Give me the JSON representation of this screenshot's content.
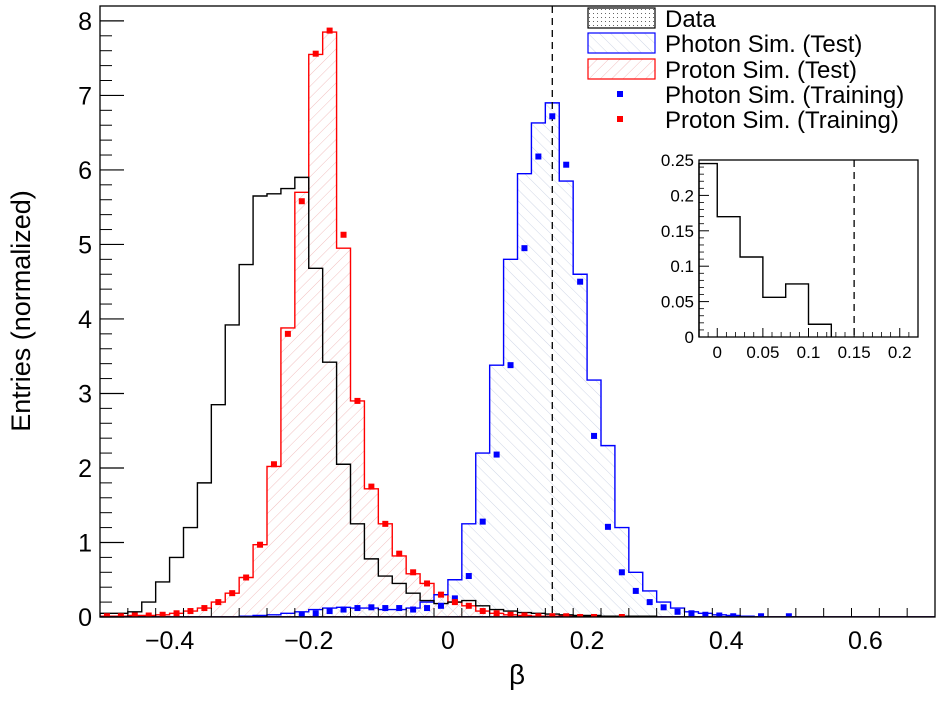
{
  "chart_data": [
    {
      "type": "histogram",
      "xlabel": "β",
      "ylabel": "Entries (normalized)",
      "xlim": [
        -0.5,
        0.7
      ],
      "ylim": [
        0,
        8.2
      ],
      "x_ticks": [
        -0.4,
        -0.2,
        0,
        0.2,
        0.4,
        0.6
      ],
      "x_tick_labels": [
        "−0.4",
        "−0.2",
        "0",
        "0.2",
        "0.4",
        "0.6"
      ],
      "y_ticks": [
        0,
        1,
        2,
        3,
        4,
        5,
        6,
        7,
        8
      ],
      "y_tick_labels": [
        "0",
        "1",
        "2",
        "3",
        "4",
        "5",
        "6",
        "7",
        "8"
      ],
      "cut_line_x": 0.15,
      "bin_edges_start": -0.5,
      "bin_width": 0.02,
      "series": [
        {
          "name": "Data",
          "style": "histogram-black",
          "color": "#000000",
          "values": [
            0.05,
            0.05,
            0.07,
            0.2,
            0.47,
            0.8,
            1.2,
            1.8,
            2.85,
            3.92,
            4.73,
            5.65,
            5.68,
            5.75,
            5.9,
            4.68,
            3.42,
            2.05,
            1.25,
            0.78,
            0.55,
            0.45,
            0.32,
            0.22,
            0.18,
            0.2,
            0.22,
            0.15,
            0.1,
            0.08,
            0.06,
            0.05,
            0.04,
            0.03,
            0.02,
            0.02,
            0.01,
            0.01,
            0.01,
            0.01,
            0.0,
            0.0,
            0.0,
            0.0,
            0.0,
            0.0,
            0.0,
            0.0,
            0.0,
            0.0,
            0.0,
            0.0,
            0.0,
            0.0,
            0.0,
            0.0,
            0.0,
            0.0,
            0.0,
            0.0
          ]
        },
        {
          "name": "Photon Sim. (Test)",
          "style": "histogram-blue-hatched",
          "color": "#0000ff",
          "values": [
            0,
            0,
            0,
            0,
            0,
            0,
            0,
            0,
            0,
            0,
            0.01,
            0.02,
            0.03,
            0.05,
            0.07,
            0.1,
            0.12,
            0.13,
            0.12,
            0.12,
            0.1,
            0.1,
            0.12,
            0.2,
            0.3,
            0.5,
            1.25,
            2.2,
            3.38,
            4.8,
            5.95,
            6.63,
            6.9,
            5.85,
            4.6,
            3.18,
            2.3,
            1.2,
            0.6,
            0.35,
            0.2,
            0.12,
            0.07,
            0.05,
            0.03,
            0.02,
            0.01,
            0.0,
            0.0,
            0.0,
            0.0,
            0.0,
            0.0,
            0.0,
            0.0,
            0.0,
            0.0,
            0.0,
            0.0,
            0.0
          ]
        },
        {
          "name": "Proton Sim. (Test)",
          "style": "histogram-red-hatched",
          "color": "#ff0000",
          "values": [
            0.01,
            0.01,
            0.02,
            0.02,
            0.03,
            0.05,
            0.08,
            0.12,
            0.2,
            0.32,
            0.53,
            0.97,
            2.02,
            3.88,
            5.7,
            7.55,
            7.85,
            4.95,
            2.9,
            1.72,
            1.25,
            0.82,
            0.58,
            0.45,
            0.3,
            0.2,
            0.15,
            0.08,
            0.05,
            0.03,
            0.02,
            0.01,
            0.01,
            0.01,
            0.0,
            0.0,
            0.0,
            0.0,
            0.0,
            0.0,
            0.0,
            0.0,
            0.0,
            0.0,
            0.0,
            0.0,
            0.0,
            0.0,
            0.0,
            0.0,
            0.0,
            0.0,
            0.0,
            0.0,
            0.0,
            0.0,
            0.0,
            0.0,
            0.0,
            0.0
          ]
        },
        {
          "name": "Photon Sim. (Training)",
          "style": "markers-blue",
          "color": "#0000ff",
          "x": [
            -0.21,
            -0.19,
            -0.17,
            -0.15,
            -0.13,
            -0.11,
            -0.09,
            -0.07,
            -0.05,
            -0.03,
            -0.01,
            0.01,
            0.03,
            0.05,
            0.07,
            0.09,
            0.11,
            0.13,
            0.15,
            0.17,
            0.19,
            0.21,
            0.23,
            0.25,
            0.27,
            0.29,
            0.31,
            0.33,
            0.35,
            0.37,
            0.39,
            0.41,
            0.45,
            0.49
          ],
          "y": [
            0.02,
            0.05,
            0.08,
            0.1,
            0.12,
            0.13,
            0.12,
            0.12,
            0.1,
            0.12,
            0.15,
            0.25,
            0.55,
            1.28,
            2.18,
            3.38,
            4.95,
            6.18,
            6.72,
            6.07,
            4.5,
            2.43,
            1.21,
            0.6,
            0.35,
            0.2,
            0.13,
            0.07,
            0.05,
            0.03,
            0.02,
            0.01,
            0.01,
            0.01
          ]
        },
        {
          "name": "Proton Sim. (Training)",
          "style": "markers-red",
          "color": "#ff0000",
          "x": [
            -0.49,
            -0.47,
            -0.45,
            -0.43,
            -0.41,
            -0.39,
            -0.37,
            -0.35,
            -0.33,
            -0.31,
            -0.29,
            -0.27,
            -0.25,
            -0.23,
            -0.21,
            -0.19,
            -0.17,
            -0.15,
            -0.13,
            -0.11,
            -0.09,
            -0.07,
            -0.05,
            -0.03,
            -0.01,
            0.01,
            0.03,
            0.05,
            0.07,
            0.09,
            0.11,
            0.13,
            0.15,
            0.17,
            0.19,
            0.21,
            0.25
          ],
          "y": [
            0.01,
            0.01,
            0.02,
            0.02,
            0.03,
            0.05,
            0.08,
            0.12,
            0.2,
            0.32,
            0.53,
            0.97,
            2.05,
            3.8,
            5.58,
            7.56,
            7.87,
            5.13,
            2.9,
            1.75,
            1.25,
            0.85,
            0.6,
            0.45,
            0.3,
            0.2,
            0.15,
            0.08,
            0.05,
            0.03,
            0.02,
            0.01,
            0.01,
            0.01,
            0.0,
            0.0,
            0.0
          ]
        }
      ],
      "legend": {
        "placement": "top-right",
        "entries": [
          {
            "label": "Data",
            "symbol": "box-dotted"
          },
          {
            "label": "Photon Sim. (Test)",
            "symbol": "box-blue-hatched"
          },
          {
            "label": "Proton Sim. (Test)",
            "symbol": "box-red-hatched"
          },
          {
            "label": "Photon Sim. (Training)",
            "symbol": "marker-blue"
          },
          {
            "label": "Proton Sim. (Training)",
            "symbol": "marker-red"
          }
        ]
      }
    },
    {
      "type": "histogram",
      "placement": "inset",
      "xlim": [
        -0.02,
        0.22
      ],
      "ylim": [
        0,
        0.25
      ],
      "x_ticks": [
        0,
        0.05,
        0.1,
        0.15,
        0.2
      ],
      "x_tick_labels": [
        "0",
        "0.05",
        "0.1",
        "0.15",
        "0.2"
      ],
      "y_ticks": [
        0,
        0.05,
        0.1,
        0.15,
        0.2,
        0.25
      ],
      "y_tick_labels": [
        "0",
        "0.05",
        "0.1",
        "0.15",
        "0.2",
        "0.25"
      ],
      "cut_line_x": 0.15,
      "series": [
        {
          "name": "Data",
          "color": "#000000",
          "bin_edges": [
            -0.02,
            0.0,
            0.025,
            0.05,
            0.075,
            0.1,
            0.125
          ],
          "values": [
            0.245,
            0.17,
            0.113,
            0.056,
            0.075,
            0.018
          ]
        }
      ]
    }
  ]
}
